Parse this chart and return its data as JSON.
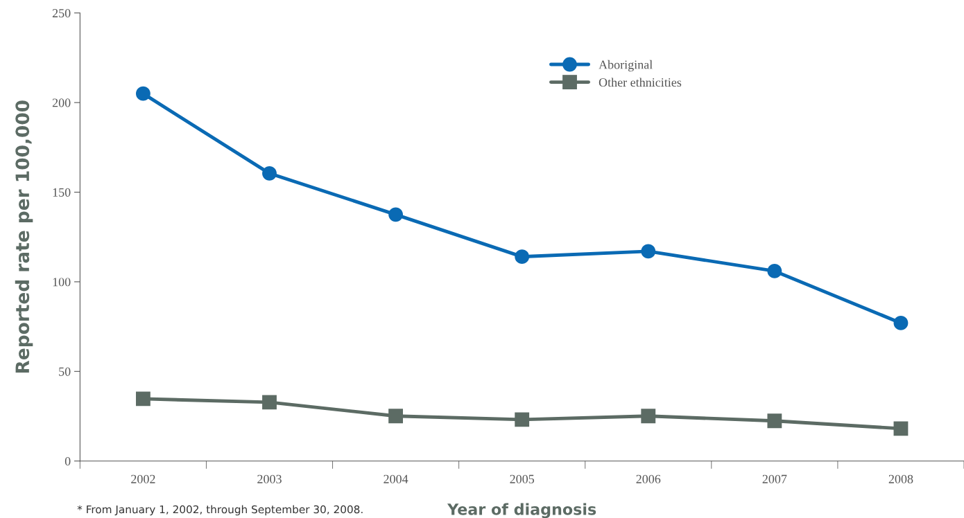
{
  "chart_data": {
    "type": "line",
    "xlabel": "Year of diagnosis",
    "ylabel": "Reported rate per 100,000",
    "categories": [
      "2002",
      "2003",
      "2004",
      "2005",
      "2006",
      "2007",
      "2008"
    ],
    "series": [
      {
        "name": "Aboriginal",
        "color": "#0a6ab4",
        "marker": "circle",
        "values": [
          205,
          160.5,
          137.5,
          114,
          117,
          106,
          77
        ]
      },
      {
        "name": "Other ethnicities",
        "color": "#5c6b64",
        "marker": "square",
        "values": [
          34.7,
          32.8,
          25.1,
          23.1,
          25.1,
          22.4,
          18.1
        ]
      }
    ],
    "ylim": [
      0,
      250
    ],
    "yticks": [
      0,
      50,
      100,
      150,
      200,
      250
    ],
    "grid": false,
    "legend": "top",
    "line_style": "solid",
    "annotations": [
      "* From January 1, 2002, through September 30, 2008."
    ]
  }
}
